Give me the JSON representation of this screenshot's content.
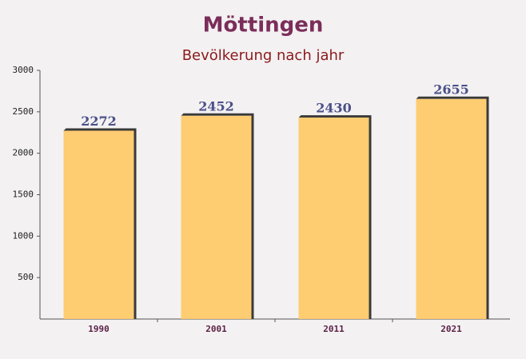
{
  "chart_data": {
    "type": "bar",
    "title": "Möttingen",
    "subtitle": "Bevölkerung nach jahr",
    "categories": [
      "1990",
      "2001",
      "2011",
      "2021"
    ],
    "values": [
      2272,
      2452,
      2430,
      2655
    ],
    "color": "#ffc966",
    "ylim": [
      0,
      3000
    ],
    "yticks": [
      500,
      1000,
      1500,
      2000,
      2500,
      3000
    ],
    "grid": false
  }
}
